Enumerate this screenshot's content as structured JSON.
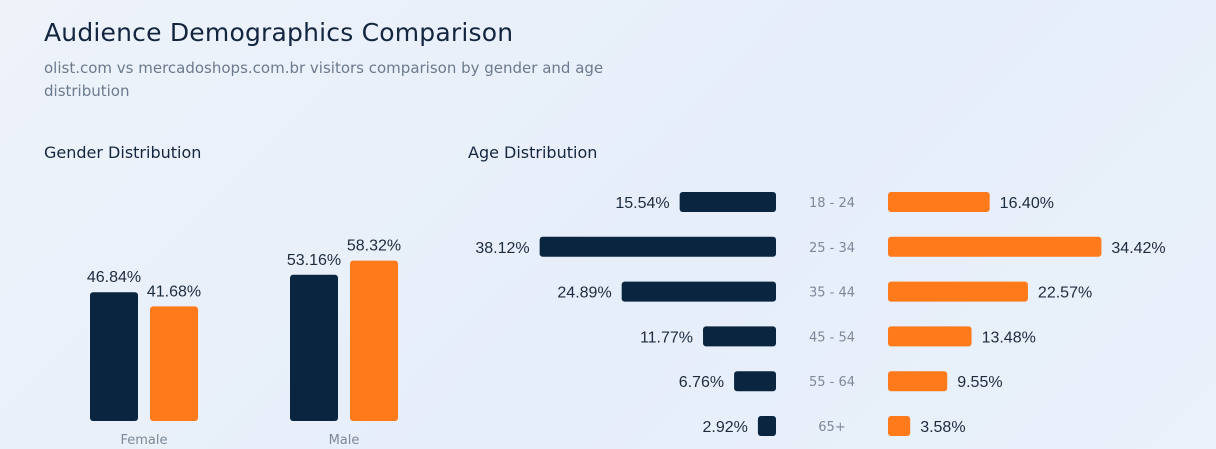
{
  "header": {
    "title": "Audience Demographics Comparison",
    "subtitle": "olist.com vs mercadoshops.com.br visitors comparison by gender and age distribution"
  },
  "sections": {
    "gender_title": "Gender Distribution",
    "age_title": "Age Distribution"
  },
  "colors": {
    "olist": "#0a2540",
    "mercadoshops": "#ff7a1a"
  },
  "chart_data": [
    {
      "type": "bar",
      "title": "Gender Distribution",
      "categories": [
        "Female",
        "Male"
      ],
      "series": [
        {
          "values": [
            46.84,
            53.16
          ],
          "labels": [
            "46.84%",
            "53.16%"
          ]
        },
        {
          "values": [
            41.68,
            58.32
          ],
          "labels": [
            "41.68%",
            "58.32%"
          ]
        }
      ]
    },
    {
      "type": "bar",
      "title": "Age Distribution",
      "orientation": "horizontal-butterfly",
      "categories": [
        "18 - 24",
        "25 - 34",
        "35 - 44",
        "45 - 54",
        "55 - 64",
        "65+"
      ],
      "series": [
        {
          "values": [
            15.54,
            38.12,
            24.89,
            11.77,
            6.76,
            2.92
          ],
          "labels": [
            "15.54%",
            "38.12%",
            "24.89%",
            "11.77%",
            "6.76%",
            "2.92%"
          ]
        },
        {
          "values": [
            16.4,
            34.42,
            22.57,
            13.48,
            9.55,
            3.58
          ],
          "labels": [
            "16.40%",
            "34.42%",
            "22.57%",
            "13.48%",
            "9.55%",
            "3.58%"
          ]
        }
      ]
    }
  ]
}
